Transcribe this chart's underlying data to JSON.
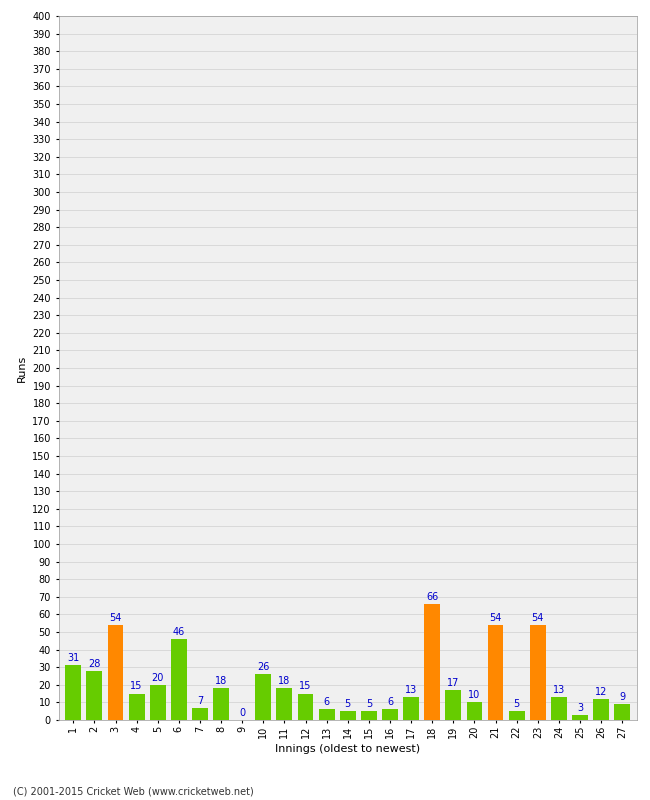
{
  "title": "",
  "xlabel": "Innings (oldest to newest)",
  "ylabel": "Runs",
  "categories": [
    1,
    2,
    3,
    4,
    5,
    6,
    7,
    8,
    9,
    10,
    11,
    12,
    13,
    14,
    15,
    16,
    17,
    18,
    19,
    20,
    21,
    22,
    23,
    24,
    25,
    26,
    27
  ],
  "values": [
    31,
    28,
    54,
    15,
    20,
    46,
    7,
    18,
    0,
    26,
    18,
    15,
    6,
    5,
    5,
    6,
    13,
    66,
    17,
    10,
    54,
    5,
    54,
    13,
    3,
    12,
    9
  ],
  "highlight_threshold": 50,
  "bar_color_normal": "#66cc00",
  "bar_color_highlight": "#ff8800",
  "label_color": "#0000cc",
  "background_color": "#ffffff",
  "plot_bg_color": "#f0f0f0",
  "grid_color": "#d0d0d0",
  "ylim": [
    0,
    400
  ],
  "yticks": [
    0,
    10,
    20,
    30,
    40,
    50,
    60,
    70,
    80,
    90,
    100,
    110,
    120,
    130,
    140,
    150,
    160,
    170,
    180,
    190,
    200,
    210,
    220,
    230,
    240,
    250,
    260,
    270,
    280,
    290,
    300,
    310,
    320,
    330,
    340,
    350,
    360,
    370,
    380,
    390,
    400
  ],
  "footer": "(C) 2001-2015 Cricket Web (www.cricketweb.net)",
  "label_fontsize": 8,
  "tick_fontsize": 7,
  "footer_fontsize": 7,
  "value_label_fontsize": 7
}
